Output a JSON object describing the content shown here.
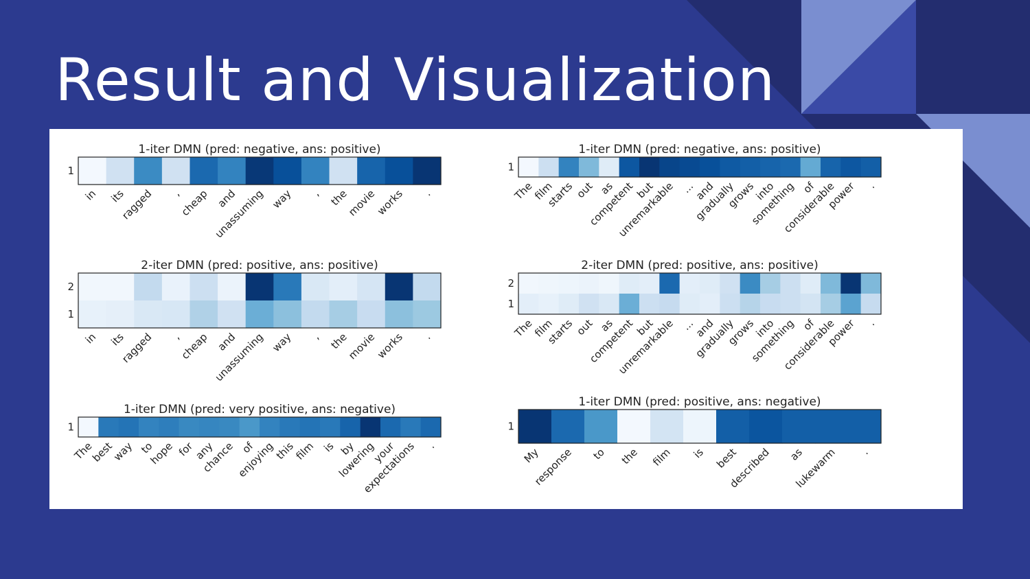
{
  "slide": {
    "title": "Result and Visualization"
  },
  "theme": {
    "background": "#2c3a8f",
    "triangle_dark": "#232d6f",
    "triangle_mid": "#3a4aa6",
    "triangle_light": "#7a8ed0",
    "panel": "#ffffff"
  },
  "chart_data": [
    {
      "type": "heatmap",
      "title": "1-iter DMN (pred: negative, ans: positive)",
      "colormap": "Blues",
      "x": [
        "in",
        "its",
        "ragged",
        ",",
        "cheap",
        "and",
        "unassuming",
        "way",
        ",",
        "the",
        "movie",
        "works",
        "."
      ],
      "rows": [
        {
          "label": "1",
          "values": [
            0.02,
            0.2,
            0.65,
            0.2,
            0.78,
            0.68,
            0.97,
            0.88,
            0.68,
            0.2,
            0.8,
            0.88,
            0.98
          ]
        }
      ]
    },
    {
      "type": "heatmap",
      "title": "1-iter DMN (pred: negative, ans: positive)",
      "colormap": "Blues",
      "x": [
        "The",
        "film",
        "starts",
        "out",
        "as",
        "competent",
        "but",
        "unremarkable",
        "...",
        "and",
        "gradually",
        "grows",
        "into",
        "something",
        "of",
        "considerable",
        "power",
        "."
      ],
      "rows": [
        {
          "label": "1",
          "values": [
            0.02,
            0.22,
            0.68,
            0.45,
            0.12,
            0.85,
            0.98,
            0.92,
            0.9,
            0.88,
            0.84,
            0.82,
            0.8,
            0.78,
            0.52,
            0.8,
            0.85,
            0.82
          ]
        }
      ]
    },
    {
      "type": "heatmap",
      "title": "2-iter DMN (pred: positive, ans: positive)",
      "colormap": "Blues",
      "x": [
        "in",
        "its",
        "ragged",
        ",",
        "cheap",
        "and",
        "unassuming",
        "way",
        ",",
        "the",
        "movie",
        "works",
        "."
      ],
      "rows": [
        {
          "label": "2",
          "values": [
            0.03,
            0.03,
            0.26,
            0.07,
            0.22,
            0.06,
            0.98,
            0.72,
            0.15,
            0.1,
            0.17,
            0.98,
            0.26
          ]
        },
        {
          "label": "1",
          "values": [
            0.08,
            0.09,
            0.15,
            0.16,
            0.32,
            0.2,
            0.5,
            0.42,
            0.26,
            0.35,
            0.24,
            0.42,
            0.38
          ]
        }
      ]
    },
    {
      "type": "heatmap",
      "title": "2-iter DMN (pred: positive, ans: positive)",
      "colormap": "Blues",
      "x": [
        "The",
        "film",
        "starts",
        "out",
        "as",
        "competent",
        "but",
        "unremarkable",
        "...",
        "and",
        "gradually",
        "grows",
        "into",
        "something",
        "of",
        "considerable",
        "power",
        "."
      ],
      "rows": [
        {
          "label": "2",
          "values": [
            0.03,
            0.04,
            0.05,
            0.06,
            0.04,
            0.12,
            0.1,
            0.78,
            0.1,
            0.12,
            0.2,
            0.65,
            0.35,
            0.22,
            0.12,
            0.45,
            0.98,
            0.45
          ]
        },
        {
          "label": "1",
          "values": [
            0.1,
            0.08,
            0.12,
            0.2,
            0.15,
            0.5,
            0.22,
            0.25,
            0.12,
            0.1,
            0.22,
            0.3,
            0.24,
            0.22,
            0.18,
            0.35,
            0.55,
            0.25
          ]
        }
      ]
    },
    {
      "type": "heatmap",
      "title": "1-iter DMN (pred: very positive, ans: negative)",
      "colormap": "Blues",
      "x": [
        "The",
        "best",
        "way",
        "to",
        "hope",
        "for",
        "any",
        "chance",
        "of",
        "enjoying",
        "this",
        "film",
        "is",
        "by",
        "lowering",
        "your",
        "expectations",
        "."
      ],
      "rows": [
        {
          "label": "1",
          "values": [
            0.02,
            0.72,
            0.74,
            0.68,
            0.7,
            0.66,
            0.67,
            0.66,
            0.6,
            0.68,
            0.72,
            0.74,
            0.72,
            0.8,
            0.98,
            0.78,
            0.72,
            0.78
          ]
        }
      ]
    },
    {
      "type": "heatmap",
      "title": "1-iter DMN (pred: positive, ans: negative)",
      "colormap": "Blues",
      "x": [
        "My",
        "response",
        "to",
        "the",
        "film",
        "is",
        "best",
        "described",
        "as",
        "lukewarm",
        "."
      ],
      "rows": [
        {
          "label": "1",
          "values": [
            0.98,
            0.78,
            0.6,
            0.02,
            0.18,
            0.05,
            0.82,
            0.86,
            0.82,
            0.82,
            0.82
          ]
        }
      ]
    }
  ]
}
